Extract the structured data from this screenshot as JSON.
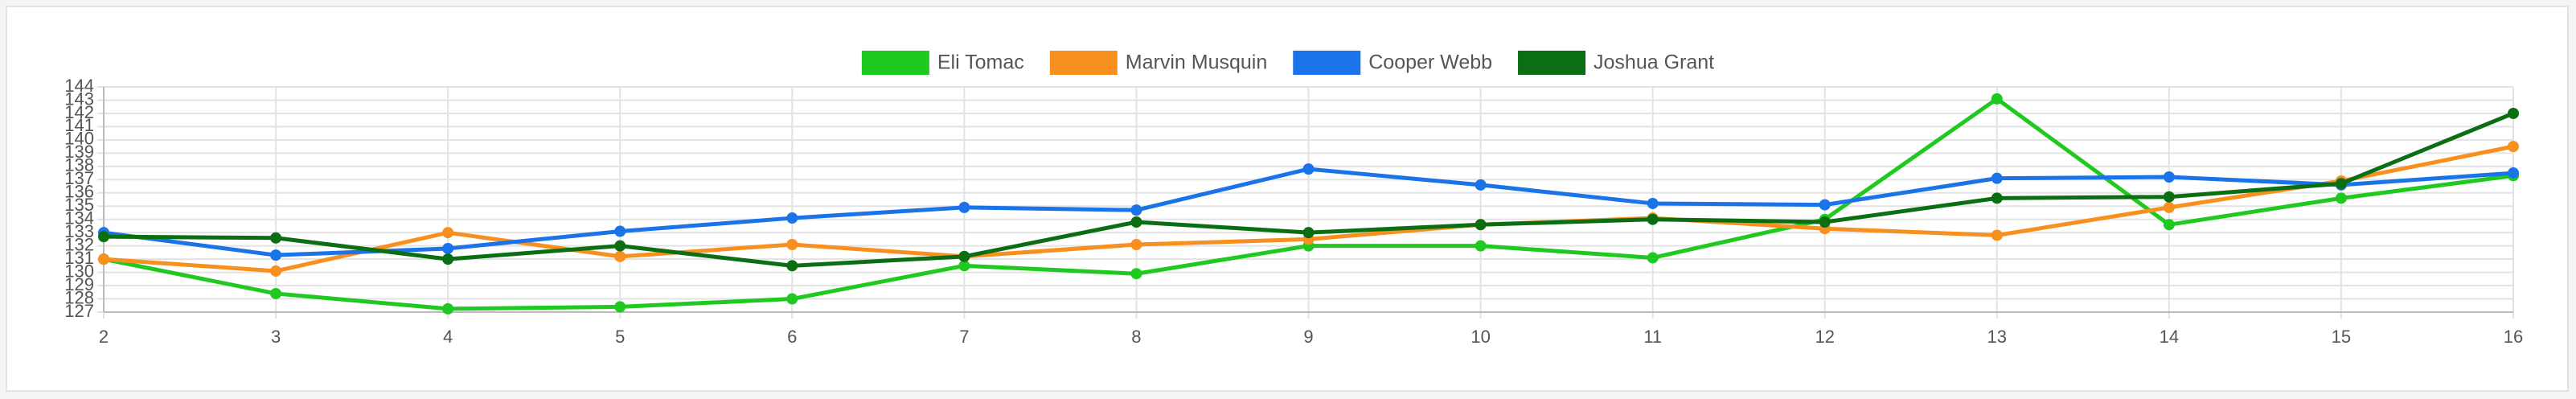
{
  "chart_data": {
    "type": "line",
    "x": [
      2,
      3,
      4,
      5,
      6,
      7,
      8,
      9,
      10,
      11,
      12,
      13,
      14,
      15,
      16
    ],
    "xlim": [
      2,
      16
    ],
    "xticks": [
      2,
      3,
      4,
      5,
      6,
      7,
      8,
      9,
      10,
      11,
      12,
      13,
      14,
      15,
      16
    ],
    "ylim": [
      127,
      144
    ],
    "yticks": [
      127,
      128,
      129,
      130,
      131,
      132,
      133,
      134,
      135,
      136,
      137,
      138,
      139,
      140,
      141,
      142,
      143,
      144
    ],
    "grid": true,
    "legend": "top",
    "series": [
      {
        "name": "Eli Tomac",
        "color": "#1fc91f",
        "values": [
          131.0,
          128.4,
          127.25,
          127.4,
          128.0,
          130.5,
          129.9,
          132.0,
          132.0,
          131.1,
          134.0,
          143.1,
          133.6,
          135.6,
          137.3
        ]
      },
      {
        "name": "Marvin Musquin",
        "color": "#f7901e",
        "values": [
          131.0,
          130.1,
          133.0,
          131.2,
          132.1,
          131.2,
          132.1,
          132.5,
          133.6,
          134.1,
          133.3,
          132.8,
          134.9,
          136.9,
          139.5
        ]
      },
      {
        "name": "Cooper Webb",
        "color": "#1a73e8",
        "values": [
          133.0,
          131.3,
          131.8,
          133.1,
          134.1,
          134.9,
          134.7,
          137.8,
          136.6,
          135.2,
          135.1,
          137.1,
          137.2,
          136.6,
          137.5
        ]
      },
      {
        "name": "Joshua Grant",
        "color": "#0b6e13",
        "values": [
          132.7,
          132.6,
          131.0,
          132.0,
          130.5,
          131.2,
          133.8,
          133.0,
          133.6,
          134.0,
          133.8,
          135.6,
          135.7,
          136.7,
          142.0
        ]
      }
    ]
  }
}
